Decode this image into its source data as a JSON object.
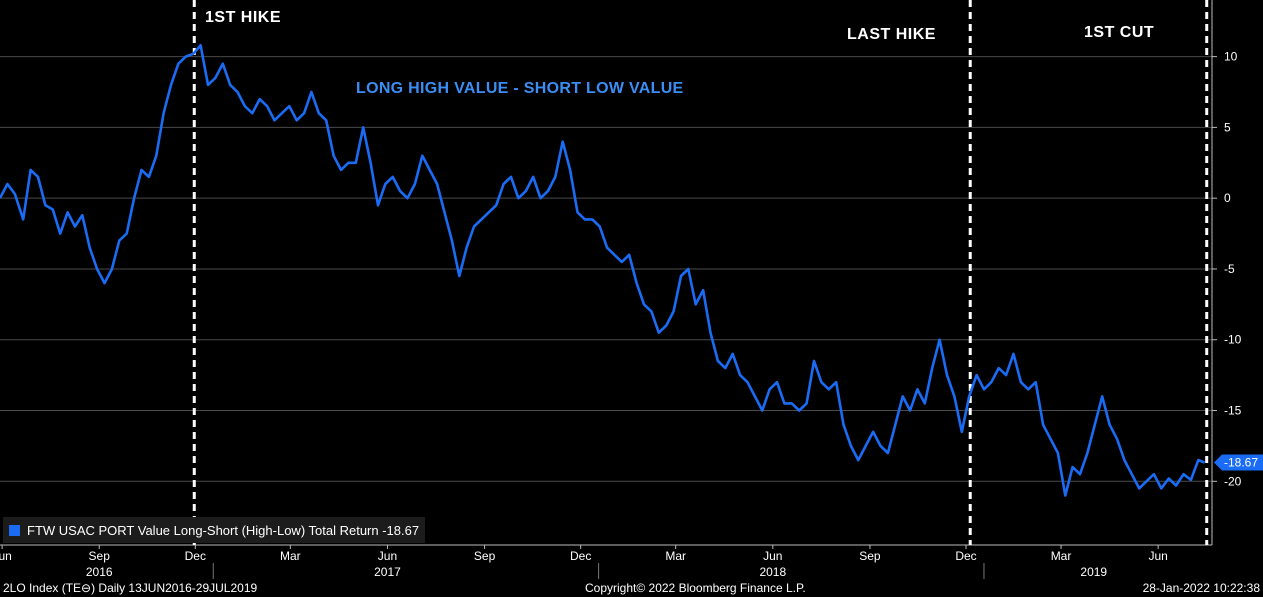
{
  "annotations": {
    "first_hike": "1ST HIKE",
    "last_hike": "LAST HIKE",
    "first_cut": "1ST CUT",
    "subtitle": "LONG HIGH VALUE - SHORT LOW VALUE"
  },
  "legend": {
    "text": "FTW USAC PORT Value Long-Short (High-Low) Total Return -18.67",
    "color": "#1a6cf5"
  },
  "footer": {
    "left": "2LO Index (TE⊖)  Daily 13JUN2016-29JUL2019",
    "center": "Copyright© 2022 Bloomberg Finance L.P.",
    "right": "28-Jan-2022 10:22:38"
  },
  "chart_data": {
    "type": "line",
    "title": "",
    "xlabel": "",
    "ylabel": "",
    "ylim": [
      -24.5,
      14
    ],
    "y_ticks": [
      10,
      5,
      0,
      -5,
      -10,
      -15,
      -20
    ],
    "y_tick_labels": [
      "10",
      "5",
      "0",
      "-5",
      "-10",
      "-15",
      "-20"
    ],
    "grid": true,
    "axis_side": "right",
    "last_value_label": "-18.67",
    "month_ticks": [
      {
        "label": "Jun",
        "date": "2016-06-15"
      },
      {
        "label": "Sep",
        "date": "2016-09-15"
      },
      {
        "label": "Dec",
        "date": "2016-12-15"
      },
      {
        "label": "Mar",
        "date": "2017-03-15"
      },
      {
        "label": "Jun",
        "date": "2017-06-15"
      },
      {
        "label": "Sep",
        "date": "2017-09-15"
      },
      {
        "label": "Dec",
        "date": "2017-12-15"
      },
      {
        "label": "Mar",
        "date": "2018-03-15"
      },
      {
        "label": "Jun",
        "date": "2018-06-15"
      },
      {
        "label": "Sep",
        "date": "2018-09-15"
      },
      {
        "label": "Dec",
        "date": "2018-12-15"
      },
      {
        "label": "Mar",
        "date": "2019-03-15"
      },
      {
        "label": "Jun",
        "date": "2019-06-15"
      }
    ],
    "year_labels": [
      {
        "label": "2016",
        "date": "2016-09-15"
      },
      {
        "label": "2017",
        "date": "2017-06-15"
      },
      {
        "label": "2018",
        "date": "2018-06-15"
      },
      {
        "label": "2019",
        "date": "2019-04-15"
      }
    ],
    "year_separators": [
      "2017-01-01",
      "2018-01-01",
      "2019-01-01"
    ],
    "vlines": [
      {
        "name": "1ST HIKE",
        "date": "2016-12-14"
      },
      {
        "name": "LAST HIKE",
        "date": "2018-12-19"
      },
      {
        "name": "1ST CUT",
        "date": "2019-07-31"
      }
    ],
    "series": [
      {
        "name": "FTW USAC PORT Value Long-Short (High-Low) Total Return",
        "color": "#1a6cf5",
        "points": [
          [
            "2016-06-13",
            0.0
          ],
          [
            "2016-06-20",
            1.0
          ],
          [
            "2016-06-27",
            0.3
          ],
          [
            "2016-07-05",
            -1.5
          ],
          [
            "2016-07-12",
            2.0
          ],
          [
            "2016-07-19",
            1.5
          ],
          [
            "2016-07-26",
            -0.5
          ],
          [
            "2016-08-02",
            -0.8
          ],
          [
            "2016-08-09",
            -2.5
          ],
          [
            "2016-08-16",
            -1.0
          ],
          [
            "2016-08-23",
            -2.0
          ],
          [
            "2016-08-30",
            -1.2
          ],
          [
            "2016-09-06",
            -3.5
          ],
          [
            "2016-09-13",
            -5.0
          ],
          [
            "2016-09-20",
            -6.0
          ],
          [
            "2016-09-27",
            -5.0
          ],
          [
            "2016-10-04",
            -3.0
          ],
          [
            "2016-10-11",
            -2.5
          ],
          [
            "2016-10-18",
            0.0
          ],
          [
            "2016-10-25",
            2.0
          ],
          [
            "2016-11-01",
            1.5
          ],
          [
            "2016-11-08",
            3.0
          ],
          [
            "2016-11-15",
            6.0
          ],
          [
            "2016-11-22",
            8.0
          ],
          [
            "2016-11-29",
            9.5
          ],
          [
            "2016-12-06",
            10.0
          ],
          [
            "2016-12-13",
            10.2
          ],
          [
            "2016-12-20",
            10.8
          ],
          [
            "2016-12-27",
            8.0
          ],
          [
            "2017-01-03",
            8.5
          ],
          [
            "2017-01-10",
            9.5
          ],
          [
            "2017-01-17",
            8.0
          ],
          [
            "2017-01-24",
            7.5
          ],
          [
            "2017-01-31",
            6.5
          ],
          [
            "2017-02-07",
            6.0
          ],
          [
            "2017-02-14",
            7.0
          ],
          [
            "2017-02-21",
            6.5
          ],
          [
            "2017-02-28",
            5.5
          ],
          [
            "2017-03-07",
            6.0
          ],
          [
            "2017-03-14",
            6.5
          ],
          [
            "2017-03-21",
            5.5
          ],
          [
            "2017-03-28",
            6.0
          ],
          [
            "2017-04-04",
            7.5
          ],
          [
            "2017-04-11",
            6.0
          ],
          [
            "2017-04-18",
            5.5
          ],
          [
            "2017-04-25",
            3.0
          ],
          [
            "2017-05-02",
            2.0
          ],
          [
            "2017-05-09",
            2.5
          ],
          [
            "2017-05-16",
            2.5
          ],
          [
            "2017-05-23",
            5.0
          ],
          [
            "2017-05-30",
            2.5
          ],
          [
            "2017-06-06",
            -0.5
          ],
          [
            "2017-06-13",
            1.0
          ],
          [
            "2017-06-20",
            1.5
          ],
          [
            "2017-06-27",
            0.5
          ],
          [
            "2017-07-04",
            0.0
          ],
          [
            "2017-07-11",
            1.0
          ],
          [
            "2017-07-18",
            3.0
          ],
          [
            "2017-07-25",
            2.0
          ],
          [
            "2017-08-01",
            1.0
          ],
          [
            "2017-08-08",
            -1.0
          ],
          [
            "2017-08-15",
            -3.0
          ],
          [
            "2017-08-22",
            -5.5
          ],
          [
            "2017-08-29",
            -3.5
          ],
          [
            "2017-09-05",
            -2.0
          ],
          [
            "2017-09-12",
            -1.5
          ],
          [
            "2017-09-19",
            -1.0
          ],
          [
            "2017-09-26",
            -0.5
          ],
          [
            "2017-10-03",
            1.0
          ],
          [
            "2017-10-10",
            1.5
          ],
          [
            "2017-10-17",
            0.0
          ],
          [
            "2017-10-24",
            0.5
          ],
          [
            "2017-10-31",
            1.5
          ],
          [
            "2017-11-07",
            0.0
          ],
          [
            "2017-11-14",
            0.5
          ],
          [
            "2017-11-21",
            1.5
          ],
          [
            "2017-11-28",
            4.0
          ],
          [
            "2017-12-05",
            2.0
          ],
          [
            "2017-12-12",
            -1.0
          ],
          [
            "2017-12-19",
            -1.5
          ],
          [
            "2017-12-26",
            -1.5
          ],
          [
            "2018-01-02",
            -2.0
          ],
          [
            "2018-01-09",
            -3.5
          ],
          [
            "2018-01-16",
            -4.0
          ],
          [
            "2018-01-23",
            -4.5
          ],
          [
            "2018-01-30",
            -4.0
          ],
          [
            "2018-02-06",
            -6.0
          ],
          [
            "2018-02-13",
            -7.5
          ],
          [
            "2018-02-20",
            -8.0
          ],
          [
            "2018-02-27",
            -9.5
          ],
          [
            "2018-03-06",
            -9.0
          ],
          [
            "2018-03-13",
            -8.0
          ],
          [
            "2018-03-20",
            -5.5
          ],
          [
            "2018-03-27",
            -5.0
          ],
          [
            "2018-04-03",
            -7.5
          ],
          [
            "2018-04-10",
            -6.5
          ],
          [
            "2018-04-17",
            -9.5
          ],
          [
            "2018-04-24",
            -11.5
          ],
          [
            "2018-05-01",
            -12.0
          ],
          [
            "2018-05-08",
            -11.0
          ],
          [
            "2018-05-15",
            -12.5
          ],
          [
            "2018-05-22",
            -13.0
          ],
          [
            "2018-05-29",
            -14.0
          ],
          [
            "2018-06-05",
            -15.0
          ],
          [
            "2018-06-12",
            -13.5
          ],
          [
            "2018-06-19",
            -13.0
          ],
          [
            "2018-06-26",
            -14.5
          ],
          [
            "2018-07-03",
            -14.5
          ],
          [
            "2018-07-10",
            -15.0
          ],
          [
            "2018-07-17",
            -14.5
          ],
          [
            "2018-07-24",
            -11.5
          ],
          [
            "2018-07-31",
            -13.0
          ],
          [
            "2018-08-07",
            -13.5
          ],
          [
            "2018-08-14",
            -13.0
          ],
          [
            "2018-08-21",
            -16.0
          ],
          [
            "2018-08-28",
            -17.5
          ],
          [
            "2018-09-04",
            -18.5
          ],
          [
            "2018-09-11",
            -17.5
          ],
          [
            "2018-09-18",
            -16.5
          ],
          [
            "2018-09-25",
            -17.5
          ],
          [
            "2018-10-02",
            -18.0
          ],
          [
            "2018-10-09",
            -16.0
          ],
          [
            "2018-10-16",
            -14.0
          ],
          [
            "2018-10-23",
            -15.0
          ],
          [
            "2018-10-30",
            -13.5
          ],
          [
            "2018-11-06",
            -14.5
          ],
          [
            "2018-11-13",
            -12.0
          ],
          [
            "2018-11-20",
            -10.0
          ],
          [
            "2018-11-27",
            -12.5
          ],
          [
            "2018-12-04",
            -14.0
          ],
          [
            "2018-12-11",
            -16.5
          ],
          [
            "2018-12-18",
            -14.0
          ],
          [
            "2018-12-25",
            -12.5
          ],
          [
            "2019-01-01",
            -13.5
          ],
          [
            "2019-01-08",
            -13.0
          ],
          [
            "2019-01-15",
            -12.0
          ],
          [
            "2019-01-22",
            -12.5
          ],
          [
            "2019-01-29",
            -11.0
          ],
          [
            "2019-02-05",
            -13.0
          ],
          [
            "2019-02-12",
            -13.5
          ],
          [
            "2019-02-19",
            -13.0
          ],
          [
            "2019-02-26",
            -16.0
          ],
          [
            "2019-03-05",
            -17.0
          ],
          [
            "2019-03-12",
            -18.0
          ],
          [
            "2019-03-19",
            -21.0
          ],
          [
            "2019-03-26",
            -19.0
          ],
          [
            "2019-04-02",
            -19.5
          ],
          [
            "2019-04-09",
            -18.0
          ],
          [
            "2019-04-16",
            -16.0
          ],
          [
            "2019-04-23",
            -14.0
          ],
          [
            "2019-04-30",
            -16.0
          ],
          [
            "2019-05-07",
            -17.0
          ],
          [
            "2019-05-14",
            -18.5
          ],
          [
            "2019-05-21",
            -19.5
          ],
          [
            "2019-05-28",
            -20.5
          ],
          [
            "2019-06-04",
            -20.0
          ],
          [
            "2019-06-11",
            -19.5
          ],
          [
            "2019-06-18",
            -20.5
          ],
          [
            "2019-06-25",
            -19.8
          ],
          [
            "2019-07-02",
            -20.3
          ],
          [
            "2019-07-09",
            -19.5
          ],
          [
            "2019-07-16",
            -19.9
          ],
          [
            "2019-07-23",
            -18.5
          ],
          [
            "2019-07-29",
            -18.67
          ]
        ]
      }
    ]
  }
}
